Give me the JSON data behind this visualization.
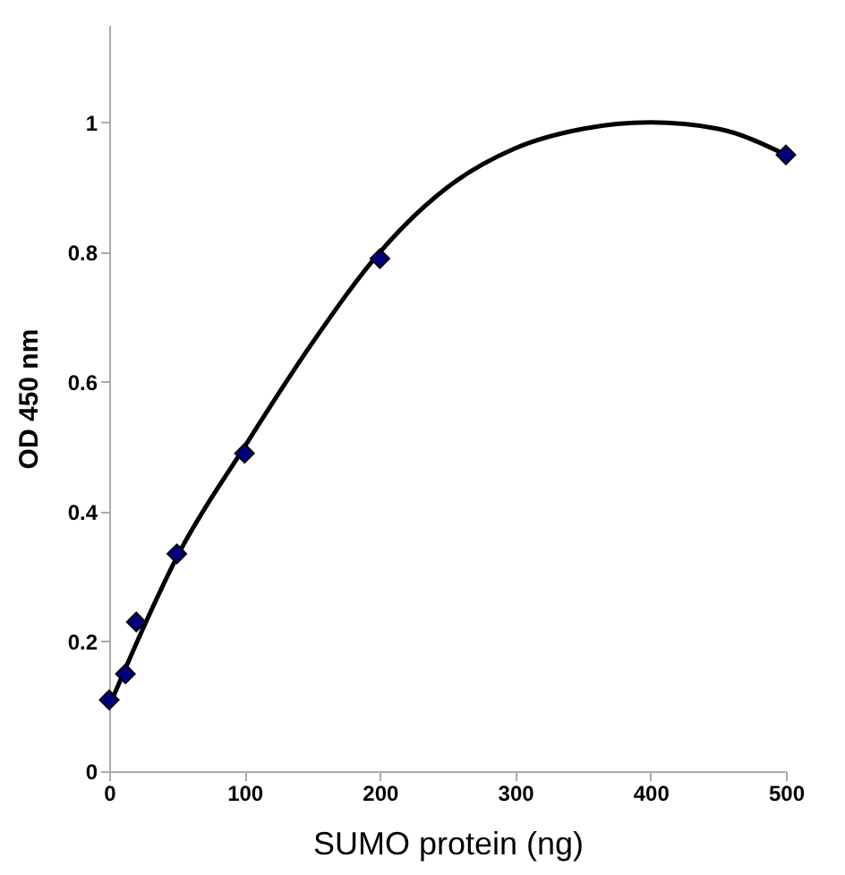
{
  "chart_data": {
    "type": "scatter",
    "xlabel": "SUMO protein (ng)",
    "ylabel": "OD 450 nm",
    "x": [
      0,
      12,
      20,
      50,
      100,
      200,
      500
    ],
    "grid": false,
    "series": [
      {
        "type": "line",
        "color": "#000000",
        "x": [
          0,
          25,
          50,
          100,
          150,
          200,
          250,
          300,
          350,
          400,
          450,
          500
        ],
        "values": [
          0.1,
          0.22,
          0.33,
          0.5,
          0.66,
          0.8,
          0.9,
          0.96,
          0.99,
          1.0,
          0.99,
          0.95
        ]
      },
      {
        "marker": "diamond",
        "color": "#000080",
        "values": [
          0.11,
          0.15,
          0.23,
          0.335,
          0.49,
          0.79,
          0.95
        ]
      }
    ],
    "xlim": [
      0,
      500
    ],
    "xticks": [
      0,
      100,
      200,
      300,
      400,
      500
    ],
    "ylim": [
      0,
      1.15
    ],
    "yticks": [
      0,
      0.2,
      0.4,
      0.6,
      0.8,
      1
    ]
  }
}
